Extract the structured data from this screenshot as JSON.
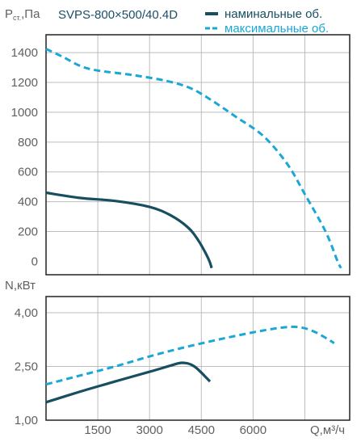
{
  "chart_data": [
    {
      "type": "line",
      "title": "SVPS-800×500/40.4D",
      "ylabel": "Pст.,Па",
      "xlabel": "",
      "xlim": [
        0,
        8800
      ],
      "ylim": [
        -90,
        1520
      ],
      "y_ticks": [
        "1400",
        "1200",
        "1000",
        "800",
        "600",
        "400",
        "200",
        "0"
      ],
      "x_grid": [
        1500,
        3000,
        4500,
        6000,
        7500
      ],
      "grid": true,
      "legend_position": "top-right",
      "series": [
        {
          "name": "наминальные об.",
          "style": "solid",
          "color": "#174f60",
          "points": [
            [
              0,
              460
            ],
            [
              1000,
              425
            ],
            [
              2000,
              405
            ],
            [
              3000,
              365
            ],
            [
              3600,
              310
            ],
            [
              4100,
              230
            ],
            [
              4400,
              145
            ],
            [
              4700,
              20
            ],
            [
              4800,
              -45
            ]
          ]
        },
        {
          "name": "максимальные об.",
          "style": "dashed",
          "color": "#1aa7d6",
          "points": [
            [
              0,
              1425
            ],
            [
              500,
              1370
            ],
            [
              1000,
              1310
            ],
            [
              1500,
              1280
            ],
            [
              2500,
              1250
            ],
            [
              3500,
              1210
            ],
            [
              4200,
              1160
            ],
            [
              4800,
              1080
            ],
            [
              5500,
              970
            ],
            [
              6300,
              840
            ],
            [
              7000,
              650
            ],
            [
              7500,
              450
            ],
            [
              8100,
              200
            ],
            [
              8450,
              0
            ],
            [
              8550,
              -45
            ]
          ]
        }
      ]
    },
    {
      "type": "line",
      "ylabel": "N,кВт",
      "xlabel": "Q,м³/ч",
      "xlim": [
        0,
        8800
      ],
      "ylim": [
        1.0,
        4.45
      ],
      "y_ticks": [
        "4,00",
        "2,50",
        "1,00"
      ],
      "x_ticks": [
        "1500",
        "3000",
        "4500",
        "6000"
      ],
      "grid": true,
      "series": [
        {
          "name": "наминальные об.",
          "style": "solid",
          "color": "#174f60",
          "points": [
            [
              0,
              1.5
            ],
            [
              1000,
              1.8
            ],
            [
              2000,
              2.08
            ],
            [
              3000,
              2.35
            ],
            [
              3600,
              2.52
            ],
            [
              3950,
              2.6
            ],
            [
              4300,
              2.5
            ],
            [
              4750,
              2.08
            ]
          ]
        },
        {
          "name": "максимальные об.",
          "style": "dashed",
          "color": "#1aa7d6",
          "points": [
            [
              0,
              2.0
            ],
            [
              1000,
              2.25
            ],
            [
              2000,
              2.5
            ],
            [
              3000,
              2.78
            ],
            [
              4000,
              3.03
            ],
            [
              5000,
              3.25
            ],
            [
              6000,
              3.45
            ],
            [
              6800,
              3.58
            ],
            [
              7300,
              3.6
            ],
            [
              7700,
              3.5
            ],
            [
              8100,
              3.3
            ],
            [
              8350,
              3.15
            ]
          ]
        }
      ]
    }
  ]
}
